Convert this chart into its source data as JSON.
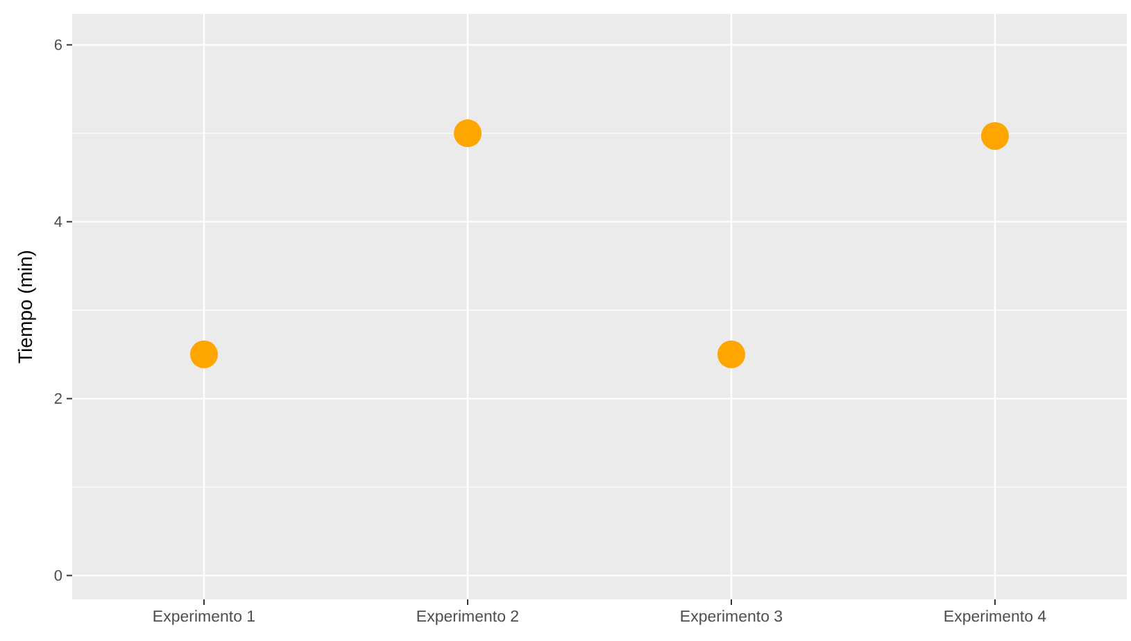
{
  "chart_data": {
    "type": "scatter",
    "ylabel": "Tiempo (min)",
    "categories": [
      "Experimento 1",
      "Experimento 2",
      "Experimento 3",
      "Experimento 4"
    ],
    "series": [
      {
        "color": "#ffa500",
        "values": [
          2.5,
          5,
          2.5,
          4.97
        ]
      }
    ],
    "ylim": [
      -0.27,
      6.35
    ],
    "yticks": [
      0,
      {
        "value": 1,
        "label": null
      },
      2,
      {
        "value": 3,
        "label": null
      },
      4,
      {
        "value": 5,
        "label": null
      },
      6
    ],
    "grid": true,
    "marker": "circle"
  }
}
